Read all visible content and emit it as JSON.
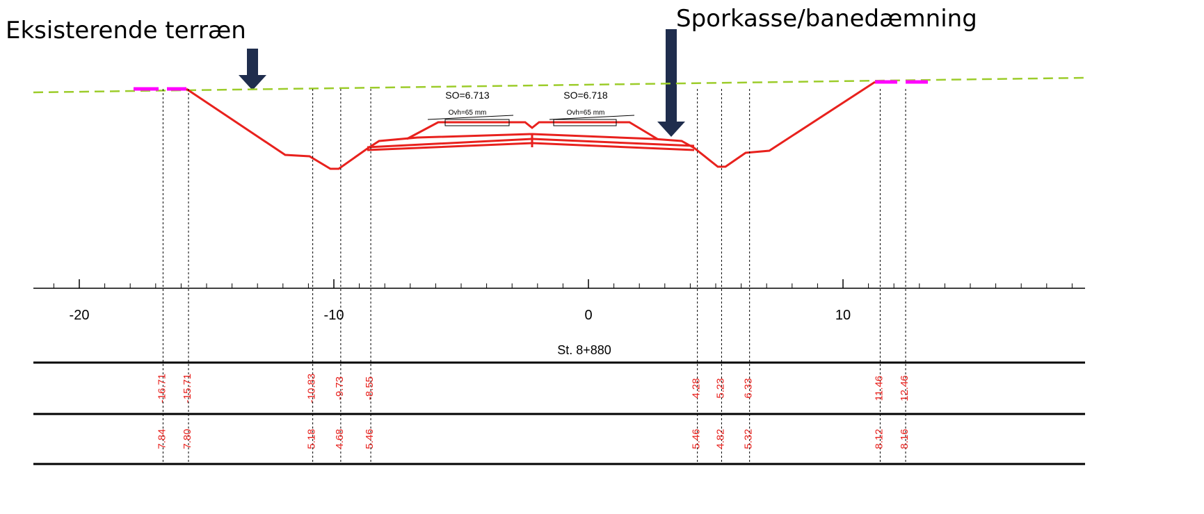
{
  "annotations": [
    "Eksisterende terræn",
    "Sporkasse/banedæmning"
  ],
  "tracks": [
    {
      "so": "SO=6.713",
      "ovh": "Ovh=65 mm"
    },
    {
      "so": "SO=6.718",
      "ovh": "Ovh=65 mm"
    }
  ],
  "axis": {
    "ticks": [
      -20,
      -10,
      0,
      10
    ]
  },
  "station": "St. 8+880",
  "offsets": [
    "-16.71",
    "-15.71",
    "-10.83",
    "-9.73",
    "-8.55",
    "4.28",
    "5.23",
    "6.33",
    "11.46",
    "12.46"
  ],
  "elevations": [
    "7.84",
    "7.80",
    "5.18",
    "4.68",
    "5.46",
    "5.46",
    "4.82",
    "5.32",
    "8.12",
    "8.16"
  ]
}
